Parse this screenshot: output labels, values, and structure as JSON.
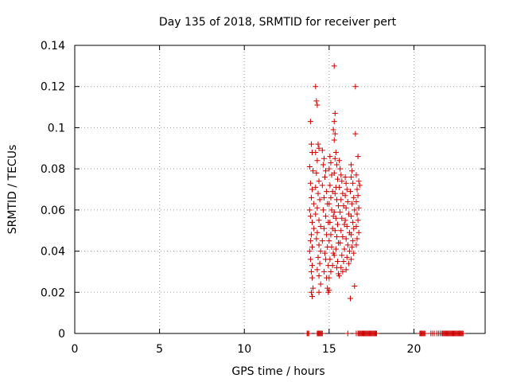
{
  "chart_data": {
    "type": "scatter",
    "title": "Day 135 of 2018, SRMTID for receiver pert",
    "xlabel": "GPS time / hours",
    "ylabel": "SRMTID / TECUs",
    "xlim": [
      0,
      24.2
    ],
    "ylim": [
      0,
      0.14
    ],
    "xticks": [
      0,
      5,
      10,
      15,
      20
    ],
    "xtick_labels": [
      "0",
      "5",
      "10",
      "15",
      "20"
    ],
    "yticks": [
      0,
      0.02,
      0.04,
      0.06,
      0.08,
      0.1,
      0.12,
      0.14
    ],
    "ytick_labels": [
      "0",
      "0.02",
      "0.04",
      "0.06",
      "0.08",
      "0.1",
      "0.12",
      "0.14"
    ],
    "grid": true,
    "marker": "+",
    "color": "#cc0000",
    "series": [
      {
        "name": "SRMTID",
        "points": [
          [
            13.9,
            0.103
          ],
          [
            13.95,
            0.092
          ],
          [
            14.0,
            0.088
          ],
          [
            13.85,
            0.081
          ],
          [
            14.05,
            0.079
          ],
          [
            13.9,
            0.073
          ],
          [
            14.0,
            0.07
          ],
          [
            13.95,
            0.066
          ],
          [
            14.1,
            0.063
          ],
          [
            13.85,
            0.06
          ],
          [
            13.9,
            0.057
          ],
          [
            14.0,
            0.054
          ],
          [
            14.1,
            0.051
          ],
          [
            13.95,
            0.048
          ],
          [
            13.9,
            0.045
          ],
          [
            14.0,
            0.042
          ],
          [
            13.85,
            0.04
          ],
          [
            13.9,
            0.036
          ],
          [
            14.0,
            0.033
          ],
          [
            13.95,
            0.03
          ],
          [
            14.0,
            0.027
          ],
          [
            14.05,
            0.022
          ],
          [
            13.95,
            0.02
          ],
          [
            14.0,
            0.018
          ],
          [
            14.2,
            0.12
          ],
          [
            14.25,
            0.113
          ],
          [
            14.3,
            0.111
          ],
          [
            14.35,
            0.092
          ],
          [
            14.4,
            0.09
          ],
          [
            14.2,
            0.088
          ],
          [
            14.3,
            0.084
          ],
          [
            14.25,
            0.078
          ],
          [
            14.4,
            0.074
          ],
          [
            14.2,
            0.071
          ],
          [
            14.35,
            0.068
          ],
          [
            14.45,
            0.065
          ],
          [
            14.3,
            0.061
          ],
          [
            14.2,
            0.058
          ],
          [
            14.4,
            0.055
          ],
          [
            14.5,
            0.052
          ],
          [
            14.3,
            0.049
          ],
          [
            14.25,
            0.046
          ],
          [
            14.4,
            0.043
          ],
          [
            14.5,
            0.04
          ],
          [
            14.35,
            0.037
          ],
          [
            14.45,
            0.034
          ],
          [
            14.3,
            0.031
          ],
          [
            14.4,
            0.028
          ],
          [
            14.5,
            0.024
          ],
          [
            14.4,
            0.02
          ],
          [
            14.6,
            0.089
          ],
          [
            14.7,
            0.085
          ],
          [
            14.65,
            0.082
          ],
          [
            14.8,
            0.079
          ],
          [
            14.75,
            0.076
          ],
          [
            14.6,
            0.072
          ],
          [
            14.85,
            0.069
          ],
          [
            14.7,
            0.066
          ],
          [
            14.9,
            0.063
          ],
          [
            14.65,
            0.06
          ],
          [
            14.8,
            0.057
          ],
          [
            14.95,
            0.054
          ],
          [
            14.7,
            0.051
          ],
          [
            14.85,
            0.048
          ],
          [
            14.6,
            0.045
          ],
          [
            14.9,
            0.042
          ],
          [
            14.75,
            0.039
          ],
          [
            14.8,
            0.036
          ],
          [
            14.95,
            0.033
          ],
          [
            14.7,
            0.03
          ],
          [
            14.85,
            0.027
          ],
          [
            14.9,
            0.022
          ],
          [
            14.95,
            0.02
          ],
          [
            15.0,
            0.021
          ],
          [
            15.05,
            0.086
          ],
          [
            15.1,
            0.083
          ],
          [
            15.0,
            0.08
          ],
          [
            15.15,
            0.077
          ],
          [
            15.05,
            0.072
          ],
          [
            15.2,
            0.069
          ],
          [
            15.1,
            0.066
          ],
          [
            15.0,
            0.063
          ],
          [
            15.15,
            0.06
          ],
          [
            15.25,
            0.057
          ],
          [
            15.05,
            0.054
          ],
          [
            15.2,
            0.051
          ],
          [
            15.1,
            0.048
          ],
          [
            15.0,
            0.045
          ],
          [
            15.15,
            0.042
          ],
          [
            15.25,
            0.039
          ],
          [
            15.05,
            0.036
          ],
          [
            15.2,
            0.033
          ],
          [
            15.1,
            0.03
          ],
          [
            15.0,
            0.027
          ],
          [
            15.3,
            0.13
          ],
          [
            15.35,
            0.107
          ],
          [
            15.3,
            0.103
          ],
          [
            15.25,
            0.099
          ],
          [
            15.35,
            0.097
          ],
          [
            15.3,
            0.094
          ],
          [
            15.4,
            0.088
          ],
          [
            15.35,
            0.085
          ],
          [
            15.45,
            0.082
          ],
          [
            15.3,
            0.078
          ],
          [
            15.5,
            0.075
          ],
          [
            15.4,
            0.071
          ],
          [
            15.35,
            0.068
          ],
          [
            15.45,
            0.065
          ],
          [
            15.55,
            0.062
          ],
          [
            15.3,
            0.059
          ],
          [
            15.4,
            0.056
          ],
          [
            15.5,
            0.053
          ],
          [
            15.35,
            0.05
          ],
          [
            15.45,
            0.047
          ],
          [
            15.55,
            0.044
          ],
          [
            15.4,
            0.041
          ],
          [
            15.3,
            0.038
          ],
          [
            15.5,
            0.035
          ],
          [
            15.45,
            0.032
          ],
          [
            15.55,
            0.029
          ],
          [
            15.6,
            0.028
          ],
          [
            15.6,
            0.084
          ],
          [
            15.65,
            0.08
          ],
          [
            15.7,
            0.077
          ],
          [
            15.75,
            0.074
          ],
          [
            15.6,
            0.071
          ],
          [
            15.8,
            0.068
          ],
          [
            15.7,
            0.065
          ],
          [
            15.85,
            0.062
          ],
          [
            15.65,
            0.059
          ],
          [
            15.75,
            0.056
          ],
          [
            15.9,
            0.053
          ],
          [
            15.7,
            0.05
          ],
          [
            15.8,
            0.047
          ],
          [
            15.65,
            0.044
          ],
          [
            15.9,
            0.041
          ],
          [
            15.75,
            0.038
          ],
          [
            15.85,
            0.035
          ],
          [
            15.7,
            0.032
          ],
          [
            15.8,
            0.03
          ],
          [
            15.95,
            0.076
          ],
          [
            16.0,
            0.073
          ],
          [
            16.05,
            0.07
          ],
          [
            15.95,
            0.067
          ],
          [
            16.1,
            0.064
          ],
          [
            16.0,
            0.061
          ],
          [
            16.15,
            0.058
          ],
          [
            15.95,
            0.055
          ],
          [
            16.05,
            0.052
          ],
          [
            16.2,
            0.049
          ],
          [
            16.0,
            0.046
          ],
          [
            16.1,
            0.043
          ],
          [
            16.2,
            0.04
          ],
          [
            16.05,
            0.037
          ],
          [
            16.15,
            0.034
          ],
          [
            16.0,
            0.031
          ],
          [
            16.3,
            0.082
          ],
          [
            16.35,
            0.079
          ],
          [
            16.3,
            0.076
          ],
          [
            16.4,
            0.073
          ],
          [
            16.25,
            0.069
          ],
          [
            16.45,
            0.066
          ],
          [
            16.35,
            0.063
          ],
          [
            16.5,
            0.06
          ],
          [
            16.3,
            0.057
          ],
          [
            16.4,
            0.054
          ],
          [
            16.45,
            0.051
          ],
          [
            16.3,
            0.048
          ],
          [
            16.4,
            0.045
          ],
          [
            16.35,
            0.042
          ],
          [
            16.45,
            0.039
          ],
          [
            16.3,
            0.036
          ],
          [
            16.5,
            0.023
          ],
          [
            16.25,
            0.017
          ],
          [
            16.55,
            0.12
          ],
          [
            16.55,
            0.097
          ],
          [
            16.7,
            0.086
          ],
          [
            16.6,
            0.077
          ],
          [
            16.75,
            0.074
          ],
          [
            16.8,
            0.072
          ],
          [
            16.65,
            0.07
          ],
          [
            16.7,
            0.067
          ],
          [
            16.6,
            0.064
          ],
          [
            16.75,
            0.061
          ],
          [
            16.65,
            0.058
          ],
          [
            16.7,
            0.055
          ],
          [
            16.6,
            0.052
          ],
          [
            16.75,
            0.049
          ],
          [
            16.65,
            0.046
          ],
          [
            16.6,
            0.043
          ],
          [
            13.7,
            0
          ],
          [
            13.75,
            0
          ],
          [
            13.8,
            0
          ],
          [
            14.3,
            0
          ],
          [
            14.35,
            0
          ],
          [
            14.4,
            0
          ],
          [
            14.45,
            0
          ],
          [
            14.5,
            0
          ],
          [
            14.55,
            0
          ],
          [
            14.6,
            0
          ],
          [
            16.1,
            0
          ],
          [
            16.6,
            0
          ],
          [
            16.7,
            0
          ],
          [
            16.75,
            0
          ],
          [
            16.8,
            0
          ],
          [
            16.85,
            0
          ],
          [
            16.9,
            0
          ],
          [
            16.95,
            0
          ],
          [
            17.0,
            0
          ],
          [
            17.05,
            0
          ],
          [
            17.1,
            0
          ],
          [
            17.15,
            0
          ],
          [
            17.2,
            0
          ],
          [
            17.25,
            0
          ],
          [
            17.3,
            0
          ],
          [
            17.35,
            0
          ],
          [
            17.4,
            0
          ],
          [
            17.45,
            0
          ],
          [
            17.5,
            0
          ],
          [
            17.55,
            0
          ],
          [
            17.6,
            0
          ],
          [
            17.65,
            0
          ],
          [
            17.7,
            0
          ],
          [
            17.75,
            0
          ],
          [
            17.8,
            0
          ],
          [
            20.35,
            0
          ],
          [
            20.4,
            0
          ],
          [
            20.45,
            0
          ],
          [
            20.5,
            0
          ],
          [
            20.55,
            0
          ],
          [
            20.6,
            0
          ],
          [
            20.65,
            0
          ],
          [
            21.0,
            0
          ],
          [
            21.1,
            0
          ],
          [
            21.2,
            0
          ],
          [
            21.35,
            0
          ],
          [
            21.45,
            0
          ],
          [
            21.55,
            0
          ],
          [
            21.65,
            0
          ],
          [
            21.7,
            0
          ],
          [
            21.75,
            0
          ],
          [
            21.8,
            0
          ],
          [
            21.85,
            0
          ],
          [
            21.9,
            0
          ],
          [
            21.95,
            0
          ],
          [
            22.0,
            0
          ],
          [
            22.05,
            0
          ],
          [
            22.1,
            0
          ],
          [
            22.15,
            0
          ],
          [
            22.2,
            0
          ],
          [
            22.25,
            0
          ],
          [
            22.3,
            0
          ],
          [
            22.35,
            0
          ],
          [
            22.4,
            0
          ],
          [
            22.45,
            0
          ],
          [
            22.5,
            0
          ],
          [
            22.55,
            0
          ],
          [
            22.6,
            0
          ],
          [
            22.65,
            0
          ],
          [
            22.7,
            0
          ],
          [
            22.75,
            0
          ],
          [
            22.8,
            0
          ],
          [
            22.85,
            0
          ],
          [
            22.9,
            0
          ]
        ]
      }
    ]
  }
}
